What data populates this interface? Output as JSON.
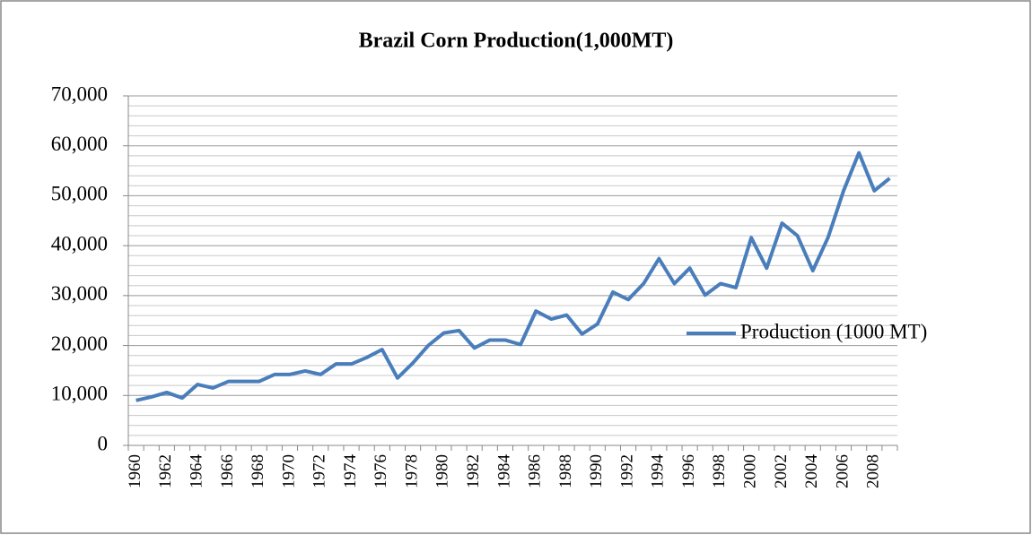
{
  "chart_data": {
    "type": "line",
    "title": "Brazil Corn Production(1,000MT)",
    "categories": [
      "1960",
      null,
      "1962",
      null,
      "1964",
      null,
      "1966",
      null,
      "1968",
      null,
      "1970",
      null,
      "1972",
      null,
      "1974",
      null,
      "1976",
      null,
      "1978",
      null,
      "1980",
      null,
      "1982",
      null,
      "1984",
      null,
      "1986",
      null,
      "1988",
      null,
      "1990",
      null,
      "1992",
      null,
      "1994",
      null,
      "1996",
      null,
      "1998",
      null,
      "2000",
      null,
      "2002",
      null,
      "2004",
      null,
      "2006",
      null,
      "2008",
      null
    ],
    "series": [
      {
        "name": "Production (1000 MT)",
        "color": "#4a7ebb",
        "values": [
          9000,
          9700,
          10600,
          9500,
          12200,
          11500,
          12800,
          12800,
          12800,
          14200,
          14200,
          14900,
          14200,
          16300,
          16300,
          17600,
          19200,
          13500,
          16500,
          20000,
          22500,
          23000,
          19500,
          21100,
          21100,
          20200,
          26900,
          25300,
          26100,
          22300,
          24300,
          30700,
          29200,
          32400,
          37400,
          32400,
          35500,
          30100,
          32400,
          31600,
          41600,
          35500,
          44500,
          42000,
          35000,
          41700,
          51000,
          58600,
          51000,
          53500
        ]
      }
    ],
    "ylim": [
      0,
      70000
    ],
    "yticks": [
      0,
      {
        "value": 10000,
        "label": "10,000"
      },
      {
        "value": 20000,
        "label": "20,000"
      },
      {
        "value": 30000,
        "label": "30,000"
      },
      {
        "value": 40000,
        "label": "40,000"
      },
      {
        "value": 50000,
        "label": "50,000"
      },
      {
        "value": 60000,
        "label": "60,000"
      },
      {
        "value": 70000,
        "label": "70,000"
      }
    ],
    "grid": true,
    "legend": "right"
  }
}
